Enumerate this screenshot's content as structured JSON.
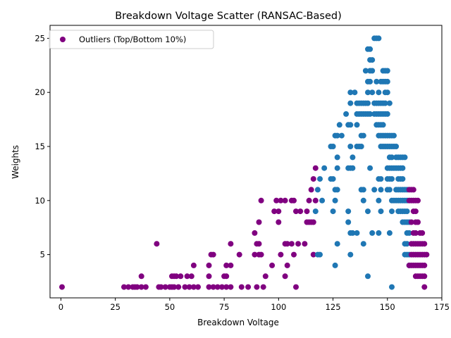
{
  "chart_data": {
    "type": "scatter",
    "title": "Breakdown Voltage Scatter (RANSAC-Based)",
    "xlabel": "Breakdown Voltage",
    "ylabel": "Weights",
    "xlim": [
      -5,
      175
    ],
    "ylim": [
      1.0,
      26.2
    ],
    "xticks": [
      0,
      25,
      50,
      75,
      100,
      125,
      150,
      175
    ],
    "yticks": [
      5,
      10,
      15,
      20,
      25
    ],
    "grid": false,
    "legend": {
      "placement": "top-left",
      "entries": [
        {
          "label": "Outliers (Top/Bottom 10%)",
          "color": "#800080"
        }
      ]
    },
    "series": [
      {
        "name": "Outliers (Top/Bottom 10%)",
        "color": "#800080",
        "points": [
          [
            0.5,
            2
          ],
          [
            29,
            2
          ],
          [
            31,
            2
          ],
          [
            33,
            2
          ],
          [
            34,
            2
          ],
          [
            35,
            2
          ],
          [
            37,
            2
          ],
          [
            39,
            2
          ],
          [
            37,
            3
          ],
          [
            44,
            6
          ],
          [
            45,
            2
          ],
          [
            46,
            2
          ],
          [
            48,
            2
          ],
          [
            50,
            2
          ],
          [
            51,
            2
          ],
          [
            52,
            2
          ],
          [
            54,
            2
          ],
          [
            51,
            3
          ],
          [
            52,
            3
          ],
          [
            53,
            3
          ],
          [
            55,
            3
          ],
          [
            58,
            3
          ],
          [
            57,
            2
          ],
          [
            59,
            2
          ],
          [
            61,
            2
          ],
          [
            63,
            2
          ],
          [
            60,
            3
          ],
          [
            61,
            4
          ],
          [
            68,
            2
          ],
          [
            70,
            2
          ],
          [
            72,
            2
          ],
          [
            68,
            3
          ],
          [
            68,
            4
          ],
          [
            69,
            5
          ],
          [
            70,
            5
          ],
          [
            74,
            2
          ],
          [
            76,
            2
          ],
          [
            78,
            2
          ],
          [
            75,
            3
          ],
          [
            76,
            3
          ],
          [
            76,
            4
          ],
          [
            78,
            4
          ],
          [
            78,
            6
          ],
          [
            83,
            2
          ],
          [
            86,
            2
          ],
          [
            90,
            2
          ],
          [
            93,
            2
          ],
          [
            82,
            5
          ],
          [
            89,
            5
          ],
          [
            91,
            5
          ],
          [
            92,
            5
          ],
          [
            89,
            7
          ],
          [
            91,
            6
          ],
          [
            90,
            6
          ],
          [
            91,
            8
          ],
          [
            92,
            10
          ],
          [
            94,
            3
          ],
          [
            97,
            4
          ],
          [
            98,
            9
          ],
          [
            100,
            9
          ],
          [
            99,
            10
          ],
          [
            101,
            10
          ],
          [
            103,
            10
          ],
          [
            100,
            8
          ],
          [
            101,
            5
          ],
          [
            103,
            6
          ],
          [
            104,
            6
          ],
          [
            106,
            6
          ],
          [
            109,
            6
          ],
          [
            103,
            3
          ],
          [
            104,
            4
          ],
          [
            107,
            5
          ],
          [
            108,
            2
          ],
          [
            106,
            10
          ],
          [
            107,
            10
          ],
          [
            108,
            9
          ],
          [
            110,
            9
          ],
          [
            112,
            6
          ],
          [
            113,
            8
          ],
          [
            114,
            8
          ],
          [
            115,
            8
          ],
          [
            116,
            8
          ],
          [
            113,
            9
          ],
          [
            114,
            10
          ],
          [
            115,
            11
          ],
          [
            116,
            12
          ],
          [
            117,
            13
          ],
          [
            116,
            5
          ],
          [
            117,
            10
          ]
        ]
      },
      {
        "name": "",
        "color": "#1f77b4",
        "points": [
          [
            117,
            9
          ],
          [
            118,
            11
          ],
          [
            119,
            12
          ],
          [
            118,
            5
          ],
          [
            119,
            5
          ],
          [
            121,
            13
          ],
          [
            120,
            10
          ],
          [
            124,
            15
          ],
          [
            125,
            15
          ],
          [
            126,
            16
          ],
          [
            127,
            16
          ],
          [
            128,
            17
          ],
          [
            129,
            16
          ],
          [
            124,
            12
          ],
          [
            125,
            12
          ],
          [
            126,
            11
          ],
          [
            127,
            11
          ],
          [
            125,
            9
          ],
          [
            126,
            4
          ],
          [
            127,
            6
          ],
          [
            126,
            10
          ],
          [
            127,
            14
          ],
          [
            127,
            13
          ],
          [
            131,
            18
          ],
          [
            132,
            17
          ],
          [
            133,
            17
          ],
          [
            132,
            13
          ],
          [
            133,
            13
          ],
          [
            134,
            13
          ],
          [
            132,
            9
          ],
          [
            133,
            7
          ],
          [
            134,
            7
          ],
          [
            133,
            5
          ],
          [
            132,
            8
          ],
          [
            133,
            20
          ],
          [
            133,
            19
          ],
          [
            135,
            20
          ],
          [
            134,
            14
          ],
          [
            133,
            15
          ],
          [
            136,
            19
          ],
          [
            137,
            19
          ],
          [
            138,
            19
          ],
          [
            139,
            19
          ],
          [
            140,
            19
          ],
          [
            141,
            19
          ],
          [
            136,
            18
          ],
          [
            137,
            18
          ],
          [
            138,
            18
          ],
          [
            139,
            18
          ],
          [
            140,
            18
          ],
          [
            141,
            18
          ],
          [
            142,
            18
          ],
          [
            136,
            17
          ],
          [
            136,
            15
          ],
          [
            137,
            15
          ],
          [
            138,
            15
          ],
          [
            138,
            16
          ],
          [
            139,
            16
          ],
          [
            138,
            11
          ],
          [
            139,
            11
          ],
          [
            139,
            10
          ],
          [
            136,
            7
          ],
          [
            139,
            6
          ],
          [
            140,
            22
          ],
          [
            142,
            22
          ],
          [
            141,
            24
          ],
          [
            142,
            24
          ],
          [
            142,
            23
          ],
          [
            143,
            23
          ],
          [
            141,
            21
          ],
          [
            142,
            21
          ],
          [
            143,
            22
          ],
          [
            141,
            20
          ],
          [
            143,
            20
          ],
          [
            142,
            13
          ],
          [
            141,
            9
          ],
          [
            141,
            3
          ],
          [
            144,
            25
          ],
          [
            145,
            25
          ],
          [
            146,
            25
          ],
          [
            145,
            21
          ],
          [
            146,
            20
          ],
          [
            147,
            21
          ],
          [
            148,
            21
          ],
          [
            144,
            19
          ],
          [
            145,
            19
          ],
          [
            146,
            19
          ],
          [
            147,
            19
          ],
          [
            148,
            19
          ],
          [
            149,
            19
          ],
          [
            144,
            18
          ],
          [
            145,
            18
          ],
          [
            146,
            18
          ],
          [
            147,
            18
          ],
          [
            148,
            18
          ],
          [
            149,
            18
          ],
          [
            150,
            18
          ],
          [
            145,
            17
          ],
          [
            146,
            17
          ],
          [
            147,
            17
          ],
          [
            148,
            17
          ],
          [
            146,
            16
          ],
          [
            147,
            16
          ],
          [
            148,
            16
          ],
          [
            147,
            15
          ],
          [
            148,
            15
          ],
          [
            146,
            12
          ],
          [
            147,
            12
          ],
          [
            146,
            10
          ],
          [
            147,
            9
          ],
          [
            147,
            11
          ],
          [
            144,
            11
          ],
          [
            146,
            7
          ],
          [
            143,
            7
          ],
          [
            148,
            22
          ],
          [
            149,
            22
          ],
          [
            150,
            22
          ],
          [
            149,
            21
          ],
          [
            150,
            21
          ],
          [
            149,
            20
          ],
          [
            150,
            20
          ],
          [
            151,
            19
          ],
          [
            149,
            16
          ],
          [
            150,
            16
          ],
          [
            151,
            16
          ],
          [
            152,
            16
          ],
          [
            153,
            16
          ],
          [
            149,
            15
          ],
          [
            150,
            15
          ],
          [
            151,
            15
          ],
          [
            152,
            15
          ],
          [
            153,
            15
          ],
          [
            154,
            15
          ],
          [
            151,
            14
          ],
          [
            152,
            14
          ],
          [
            150,
            13
          ],
          [
            151,
            13
          ],
          [
            152,
            13
          ],
          [
            153,
            13
          ],
          [
            150,
            12
          ],
          [
            151,
            12
          ],
          [
            152,
            12
          ],
          [
            150,
            11
          ],
          [
            151,
            11
          ],
          [
            152,
            10
          ],
          [
            153,
            10
          ],
          [
            152,
            9
          ],
          [
            151,
            7
          ],
          [
            152,
            2
          ],
          [
            154,
            14
          ],
          [
            155,
            14
          ],
          [
            156,
            14
          ],
          [
            157,
            14
          ],
          [
            158,
            14
          ],
          [
            154,
            13
          ],
          [
            155,
            13
          ],
          [
            156,
            13
          ],
          [
            157,
            13
          ],
          [
            155,
            12
          ],
          [
            156,
            12
          ],
          [
            157,
            12
          ],
          [
            154,
            11
          ],
          [
            155,
            11
          ],
          [
            156,
            11
          ],
          [
            157,
            11
          ],
          [
            158,
            11
          ],
          [
            159,
            11
          ],
          [
            154,
            10
          ],
          [
            155,
            10
          ],
          [
            156,
            10
          ],
          [
            157,
            10
          ],
          [
            158,
            10
          ],
          [
            159,
            10
          ],
          [
            155,
            9
          ],
          [
            156,
            9
          ],
          [
            157,
            9
          ],
          [
            158,
            9
          ],
          [
            159,
            9
          ],
          [
            157,
            8
          ],
          [
            158,
            8
          ],
          [
            159,
            8
          ],
          [
            160,
            8
          ],
          [
            158,
            6
          ],
          [
            159,
            7
          ],
          [
            160,
            7
          ],
          [
            158,
            5
          ],
          [
            159,
            5
          ],
          [
            160,
            5
          ],
          [
            159,
            6
          ],
          [
            160,
            4
          ]
        ]
      },
      {
        "name": "",
        "color": "#800080",
        "points": [
          [
            160,
            11
          ],
          [
            161,
            11
          ],
          [
            162,
            11
          ],
          [
            162,
            10
          ],
          [
            163,
            10
          ],
          [
            164,
            10
          ],
          [
            161,
            10
          ],
          [
            160,
            10
          ],
          [
            162,
            9
          ],
          [
            163,
            9
          ],
          [
            161,
            8
          ],
          [
            163,
            8
          ],
          [
            164,
            8
          ],
          [
            162,
            7
          ],
          [
            163,
            7
          ],
          [
            165,
            7
          ],
          [
            166,
            7
          ],
          [
            161,
            6
          ],
          [
            162,
            6
          ],
          [
            163,
            6
          ],
          [
            164,
            6
          ],
          [
            165,
            6
          ],
          [
            166,
            6
          ],
          [
            167,
            6
          ],
          [
            161,
            5
          ],
          [
            162,
            5
          ],
          [
            163,
            5
          ],
          [
            164,
            5
          ],
          [
            165,
            5
          ],
          [
            166,
            5
          ],
          [
            167,
            5
          ],
          [
            168,
            5
          ],
          [
            160,
            4
          ],
          [
            161,
            4
          ],
          [
            162,
            4
          ],
          [
            163,
            4
          ],
          [
            164,
            4
          ],
          [
            165,
            4
          ],
          [
            166,
            4
          ],
          [
            167,
            4
          ],
          [
            163,
            3
          ],
          [
            164,
            3
          ],
          [
            165,
            3
          ],
          [
            166,
            3
          ],
          [
            167,
            3
          ],
          [
            167,
            2
          ]
        ]
      }
    ]
  }
}
